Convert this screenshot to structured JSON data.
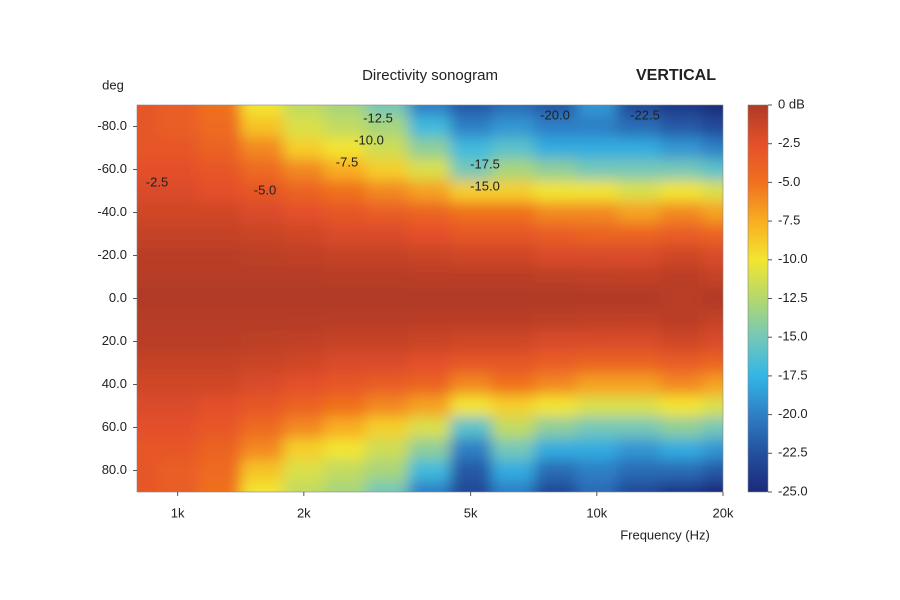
{
  "chart_data": {
    "type": "heatmap",
    "title": "Directivity sonogram",
    "subtitle": "VERTICAL",
    "y_label": "deg",
    "x_label": "Frequency (Hz)",
    "x_scale": "log",
    "x": [
      800,
      1000,
      1250,
      1600,
      2000,
      2500,
      3150,
      4000,
      5000,
      6300,
      8000,
      10000,
      12500,
      16000,
      20000
    ],
    "y": [
      -90,
      -80,
      -70,
      -60,
      -50,
      -40,
      -30,
      -20,
      -10,
      0,
      10,
      20,
      30,
      40,
      50,
      60,
      70,
      80,
      90
    ],
    "z": [
      [
        -3,
        -3,
        -3,
        -2.5,
        -2,
        -1.5,
        -1,
        -0.5,
        -0.3,
        0,
        -0.3,
        -0.5,
        -1,
        -1.5,
        -2,
        -2.5,
        -3,
        -3,
        -3
      ],
      [
        -3.5,
        -3.5,
        -3,
        -2.5,
        -2,
        -1.5,
        -1,
        -0.5,
        -0.3,
        0,
        -0.3,
        -0.5,
        -1,
        -1.5,
        -2,
        -2.5,
        -3,
        -3.5,
        -3.5
      ],
      [
        -5,
        -4.5,
        -4,
        -3,
        -2.5,
        -1.5,
        -1,
        -0.5,
        -0.3,
        0,
        -0.3,
        -0.5,
        -1,
        -1.5,
        -2.5,
        -3,
        -4,
        -4.5,
        -5
      ],
      [
        -10,
        -8.5,
        -6,
        -4.5,
        -3,
        -2,
        -1.2,
        -0.6,
        -0.3,
        0,
        -0.3,
        -0.6,
        -1.2,
        -2,
        -3,
        -4.5,
        -6,
        -8.5,
        -10
      ],
      [
        -12,
        -11,
        -9,
        -6,
        -4,
        -2.5,
        -1.5,
        -0.8,
        -0.3,
        0,
        -0.3,
        -0.8,
        -1.5,
        -2.5,
        -4,
        -6,
        -9,
        -11,
        -12
      ],
      [
        -13,
        -12,
        -10,
        -7.5,
        -5,
        -3,
        -2,
        -1,
        -0.4,
        0,
        -0.4,
        -1,
        -2,
        -3,
        -5,
        -7.5,
        -10,
        -12,
        -13
      ],
      [
        -15,
        -13,
        -11.5,
        -9,
        -6,
        -3.5,
        -2,
        -1,
        -0.4,
        0,
        -0.4,
        -1,
        -2,
        -3.5,
        -6,
        -9,
        -11.5,
        -13,
        -15
      ],
      [
        -20,
        -17,
        -14,
        -11,
        -7,
        -4,
        -2.5,
        -1.2,
        -0.5,
        0,
        -0.5,
        -1.2,
        -2.5,
        -4,
        -7,
        -11,
        -14,
        -17,
        -20
      ],
      [
        -22,
        -20,
        -17,
        -15,
        -9,
        -5,
        -3,
        -1.5,
        -0.5,
        0,
        -0.5,
        -1.5,
        -3,
        -6,
        -10,
        -16,
        -20,
        -22,
        -23
      ],
      [
        -21,
        -19,
        -16,
        -13,
        -9,
        -5,
        -3,
        -1.5,
        -0.5,
        0,
        -0.5,
        -1.5,
        -3,
        -5,
        -9,
        -12,
        -15,
        -18,
        -20
      ],
      [
        -22,
        -20,
        -18,
        -14,
        -10,
        -6,
        -3.5,
        -2,
        -0.6,
        0,
        -0.6,
        -2,
        -3.5,
        -6,
        -10,
        -14,
        -18,
        -21,
        -23
      ],
      [
        -19,
        -20,
        -18,
        -15,
        -10,
        -6,
        -4,
        -2,
        -0.7,
        0,
        -0.7,
        -2,
        -4,
        -7,
        -11,
        -15,
        -18,
        -20,
        -21
      ],
      [
        -23,
        -21,
        -18,
        -15,
        -11,
        -7,
        -4,
        -2,
        -0.8,
        0,
        -0.8,
        -2,
        -4,
        -7,
        -11,
        -15,
        -19,
        -21,
        -23
      ],
      [
        -24,
        -22,
        -19,
        -15,
        -10,
        -6,
        -3.5,
        -1.5,
        -0.5,
        -0.5,
        -0.5,
        -1.5,
        -3.5,
        -6,
        -10,
        -14,
        -18,
        -21,
        -24
      ],
      [
        -25,
        -23,
        -20,
        -16,
        -11,
        -7,
        -4,
        -2,
        -1,
        0,
        -1,
        -2,
        -4,
        -7,
        -11,
        -15,
        -19,
        -22,
        -25
      ]
    ],
    "xlim": [
      800,
      20000
    ],
    "xticks": [
      {
        "value": 1000,
        "label": "1k"
      },
      {
        "value": 2000,
        "label": "2k"
      },
      {
        "value": 5000,
        "label": "5k"
      },
      {
        "value": 10000,
        "label": "10k"
      },
      {
        "value": 20000,
        "label": "20k"
      }
    ],
    "ylim": [
      -90,
      90
    ],
    "yticks": [
      {
        "value": -80,
        "label": "-80.0"
      },
      {
        "value": -60,
        "label": "-60.0"
      },
      {
        "value": -40,
        "label": "-40.0"
      },
      {
        "value": -20,
        "label": "-20.0"
      },
      {
        "value": 0,
        "label": "0.0"
      },
      {
        "value": 20,
        "label": "20.0"
      },
      {
        "value": 40,
        "label": "40.0"
      },
      {
        "value": 60,
        "label": "60.0"
      },
      {
        "value": 80,
        "label": "80.0"
      }
    ],
    "zlim": [
      -25,
      0
    ],
    "zticks": [
      {
        "value": 0,
        "label": "0 dB"
      },
      -2.5,
      {
        "value": -5,
        "label": "-5.0"
      },
      -7.5,
      {
        "value": -10,
        "label": "-10.0"
      },
      -12.5,
      {
        "value": -15,
        "label": "-15.0"
      },
      -17.5,
      {
        "value": -20,
        "label": "-20.0"
      },
      -22.5,
      {
        "value": -25,
        "label": "-25.0"
      }
    ],
    "colorscale": [
      "#b03a26",
      "#e4502a",
      "#f0701f",
      "#f8ad22",
      "#f3e531",
      "#b4d86c",
      "#74c8b8",
      "#32b6e6",
      "#2f7fc6",
      "#22509e",
      "#1c2a7a"
    ],
    "annotations": [
      "-2.5",
      "-5.0",
      "-7.5",
      "-10.0",
      "-12.5",
      "-17.5",
      "-15.0",
      "-20.0",
      "-22.5"
    ]
  }
}
